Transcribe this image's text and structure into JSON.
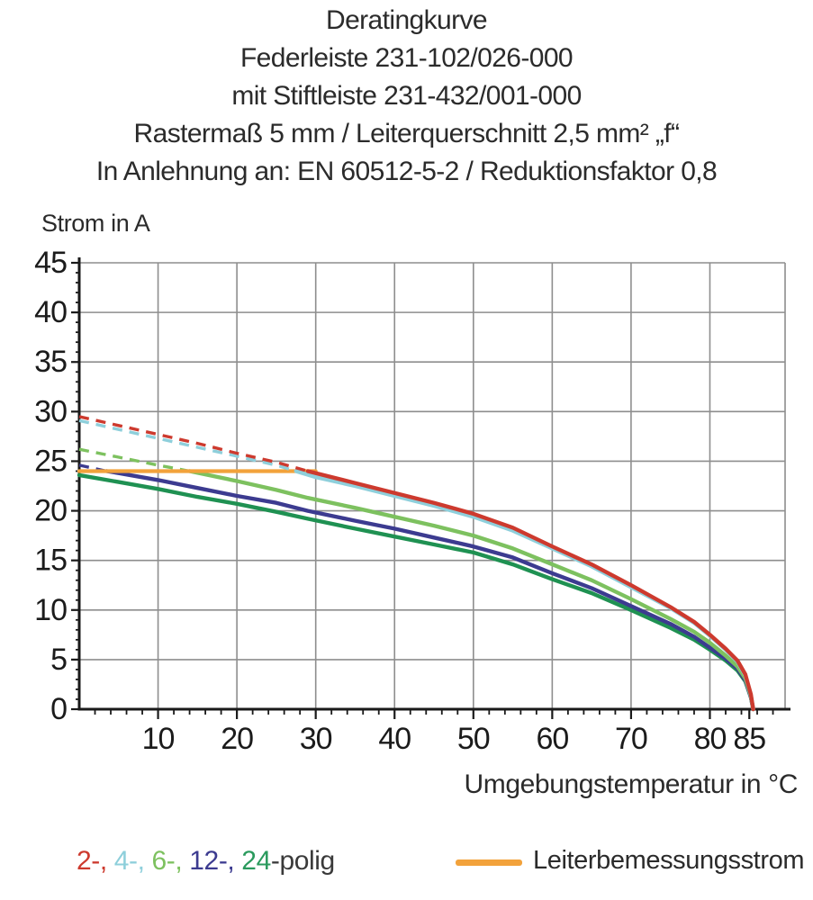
{
  "chart_data": {
    "type": "line",
    "title_lines": [
      "Deratingkurve",
      "Federleiste 231-102/026-000",
      "mit Stiftleiste 231-432/001-000",
      "Rastermaß 5 mm / Leiterquerschnitt 2,5 mm² „f“",
      "In Anlehnung an: EN 60512-5-2 / Reduktionsfaktor 0,8"
    ],
    "ylabel": "Strom in A",
    "xlabel": "Umgebungstemperatur in °C",
    "xlim": [
      0,
      89.5
    ],
    "ylim": [
      0,
      45
    ],
    "x_tick_labels": [
      10,
      20,
      30,
      40,
      50,
      60,
      70,
      80,
      85
    ],
    "x_gridlines": [
      10,
      20,
      30,
      40,
      50,
      60,
      70,
      80
    ],
    "x_minor_step": 2,
    "y_tick_labels": [
      0,
      5,
      10,
      15,
      20,
      25,
      30,
      35,
      40,
      45
    ],
    "y_minor_step": 1,
    "grid": true,
    "colors": {
      "grid": "#8e8e8e",
      "axis": "#1a1a1a",
      "text": "#1b1b1b"
    },
    "reference_line": {
      "label": "Leiterbemessungsstrom",
      "color": "#f2a23b",
      "value": 24,
      "T_range": [
        0,
        30
      ]
    },
    "series_note": "dashed where curve exceeds conductor rated current 24 A, solid below; all curves fall to 0 A at 85.5 °C",
    "series": [
      {
        "name": "2-polig",
        "color": "#cd3a2e",
        "solid_from": 29,
        "points": [
          [
            0,
            29.5
          ],
          [
            5,
            28.6
          ],
          [
            10,
            27.7
          ],
          [
            15,
            26.8
          ],
          [
            20,
            25.8
          ],
          [
            25,
            24.9
          ],
          [
            29,
            24.0
          ],
          [
            35,
            22.8
          ],
          [
            40,
            21.8
          ],
          [
            45,
            20.8
          ],
          [
            50,
            19.7
          ],
          [
            55,
            18.3
          ],
          [
            60,
            16.4
          ],
          [
            65,
            14.6
          ],
          [
            70,
            12.5
          ],
          [
            75,
            10.3
          ],
          [
            78,
            8.8
          ],
          [
            80,
            7.5
          ],
          [
            82,
            6.1
          ],
          [
            83.5,
            4.9
          ],
          [
            84.5,
            3.5
          ],
          [
            85.2,
            1.5
          ],
          [
            85.5,
            0
          ]
        ]
      },
      {
        "name": "4-polig",
        "color": "#8ecfdb",
        "solid_from": 27.5,
        "points": [
          [
            0,
            29.1
          ],
          [
            5,
            28.2
          ],
          [
            10,
            27.3
          ],
          [
            15,
            26.4
          ],
          [
            20,
            25.5
          ],
          [
            25,
            24.6
          ],
          [
            27.5,
            24.0
          ],
          [
            30,
            23.4
          ],
          [
            35,
            22.5
          ],
          [
            40,
            21.5
          ],
          [
            45,
            20.5
          ],
          [
            50,
            19.4
          ],
          [
            55,
            18.0
          ],
          [
            60,
            16.2
          ],
          [
            65,
            14.4
          ],
          [
            70,
            12.3
          ],
          [
            75,
            10.2
          ],
          [
            78,
            8.7
          ],
          [
            80,
            7.4
          ],
          [
            82,
            6.0
          ],
          [
            83.5,
            4.8
          ],
          [
            84.5,
            3.4
          ],
          [
            85.2,
            1.4
          ],
          [
            85.5,
            0
          ]
        ]
      },
      {
        "name": "6-polig",
        "color": "#7dc15f",
        "solid_from": 14,
        "points": [
          [
            0,
            26.2
          ],
          [
            5,
            25.4
          ],
          [
            10,
            24.6
          ],
          [
            14,
            24.0
          ],
          [
            20,
            23.0
          ],
          [
            25,
            22.1
          ],
          [
            29,
            21.3
          ],
          [
            35,
            20.3
          ],
          [
            40,
            19.4
          ],
          [
            45,
            18.5
          ],
          [
            50,
            17.5
          ],
          [
            55,
            16.2
          ],
          [
            60,
            14.6
          ],
          [
            65,
            13.0
          ],
          [
            70,
            11.1
          ],
          [
            75,
            9.1
          ],
          [
            78,
            7.8
          ],
          [
            80,
            6.7
          ],
          [
            82,
            5.4
          ],
          [
            83.5,
            4.3
          ],
          [
            84.5,
            3.1
          ],
          [
            85.2,
            1.3
          ],
          [
            85.5,
            0
          ]
        ]
      },
      {
        "name": "12-polig",
        "color": "#3c3b90",
        "solid_from": 3.5,
        "points": [
          [
            0,
            24.6
          ],
          [
            3.5,
            24.0
          ],
          [
            5,
            23.8
          ],
          [
            10,
            23.1
          ],
          [
            15,
            22.3
          ],
          [
            20,
            21.5
          ],
          [
            25,
            20.8
          ],
          [
            29,
            20.0
          ],
          [
            35,
            19.0
          ],
          [
            40,
            18.2
          ],
          [
            45,
            17.3
          ],
          [
            50,
            16.4
          ],
          [
            55,
            15.3
          ],
          [
            60,
            13.7
          ],
          [
            65,
            12.2
          ],
          [
            70,
            10.4
          ],
          [
            75,
            8.6
          ],
          [
            78,
            7.3
          ],
          [
            80,
            6.2
          ],
          [
            82,
            5.1
          ],
          [
            83.5,
            4.1
          ],
          [
            84.5,
            2.9
          ],
          [
            85.2,
            1.2
          ],
          [
            85.5,
            0
          ]
        ]
      },
      {
        "name": "24-polig",
        "color": "#1f9152",
        "solid_from": 0,
        "points": [
          [
            0,
            23.6
          ],
          [
            5,
            22.9
          ],
          [
            10,
            22.2
          ],
          [
            15,
            21.4
          ],
          [
            20,
            20.7
          ],
          [
            25,
            19.9
          ],
          [
            29,
            19.2
          ],
          [
            35,
            18.2
          ],
          [
            40,
            17.4
          ],
          [
            45,
            16.6
          ],
          [
            50,
            15.8
          ],
          [
            55,
            14.6
          ],
          [
            60,
            13.1
          ],
          [
            65,
            11.7
          ],
          [
            70,
            10.0
          ],
          [
            75,
            8.2
          ],
          [
            78,
            7.0
          ],
          [
            80,
            6.0
          ],
          [
            82,
            4.9
          ],
          [
            83.5,
            3.9
          ],
          [
            84.5,
            2.8
          ],
          [
            85.2,
            1.2
          ],
          [
            85.5,
            0
          ]
        ]
      }
    ],
    "legend": {
      "pole_parts": [
        {
          "text": "2-, ",
          "color": "#cd3a2e"
        },
        {
          "text": "4-, ",
          "color": "#8ecfdb"
        },
        {
          "text": "6-, ",
          "color": "#7dc15f"
        },
        {
          "text": "12-, ",
          "color": "#3c3b90"
        },
        {
          "text": "24",
          "color": "#2a9a5d"
        },
        {
          "text": "-polig",
          "color": "#3a3a3a"
        }
      ],
      "conductor_label": "Leiterbemessungsstrom"
    }
  }
}
